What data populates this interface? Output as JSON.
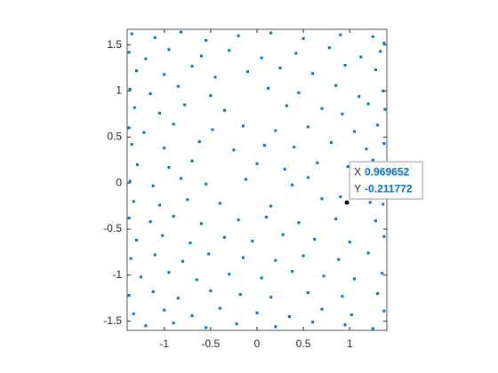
{
  "chart_data": {
    "type": "scatter",
    "color": "#0072bd",
    "xlim": [
      -1.4,
      1.4
    ],
    "ylim": [
      -1.6,
      1.67
    ],
    "xticks": [
      -1,
      -0.5,
      0,
      0.5,
      1
    ],
    "yticks": [
      -1.5,
      -1,
      -0.5,
      0,
      0.5,
      1,
      1.5
    ],
    "grid": false,
    "x": [
      -1.35,
      -1.1,
      -0.82,
      -0.55,
      -0.2,
      0.15,
      0.5,
      0.9,
      1.25,
      1.37,
      -1.38,
      -1.2,
      -0.95,
      -0.6,
      -0.3,
      0.05,
      0.42,
      0.78,
      1.12,
      1.33,
      -1.3,
      -1.0,
      -0.7,
      -0.45,
      -0.1,
      0.25,
      0.6,
      0.95,
      1.28,
      -1.37,
      -1.15,
      -0.85,
      -0.5,
      0.12,
      0.45,
      0.85,
      1.1,
      1.36,
      -1.32,
      -1.05,
      -0.78,
      -0.35,
      0.32,
      0.7,
      0.92,
      1.2,
      1.38,
      -1.38,
      -1.22,
      -0.9,
      -0.48,
      -0.15,
      0.2,
      0.55,
      1.05,
      1.3,
      -1.35,
      -1.0,
      -0.62,
      -0.25,
      0.08,
      0.4,
      0.8,
      1.18,
      1.37,
      -1.29,
      -0.95,
      -0.7,
      0.0,
      0.3,
      0.65,
      0.98,
      1.25,
      1.38,
      -1.37,
      -1.12,
      -0.82,
      -0.55,
      -0.12,
      0.38,
      0.55,
      0.9,
      1.32,
      -1.33,
      -1.05,
      -0.75,
      -0.4,
      0.15,
      0.7,
      1.22,
      1.36,
      -1.38,
      -1.15,
      -0.9,
      -0.6,
      -0.2,
      0.1,
      0.45,
      0.85,
      1.28,
      -1.3,
      -1.02,
      -0.72,
      -0.35,
      -0.05,
      0.28,
      0.62,
      1.0,
      1.37,
      -1.36,
      -1.1,
      -0.8,
      -0.52,
      -0.15,
      0.2,
      0.5,
      0.88,
      1.2,
      -1.25,
      -0.95,
      -0.65,
      -0.3,
      0.05,
      0.38,
      0.72,
      1.05,
      1.35,
      -1.38,
      -1.12,
      -0.85,
      -0.5,
      -0.18,
      0.15,
      0.55,
      0.92,
      1.3,
      -1.33,
      -1.0,
      -0.7,
      -0.4,
      0.0,
      0.35,
      0.7,
      1.02,
      1.37,
      -1.2,
      -0.9,
      -0.55,
      -0.22,
      0.2,
      0.6,
      0.95,
      1.25
    ],
    "values": [
      1.62,
      1.58,
      1.64,
      1.55,
      1.6,
      1.63,
      1.57,
      1.61,
      1.59,
      1.52,
      1.42,
      1.35,
      1.45,
      1.38,
      1.44,
      1.36,
      1.41,
      1.47,
      1.37,
      1.43,
      1.22,
      1.18,
      1.27,
      1.15,
      1.21,
      1.25,
      1.19,
      1.28,
      1.23,
      1.02,
      0.97,
      1.05,
      0.95,
      1.03,
      0.98,
      1.06,
      0.94,
      1.0,
      0.82,
      0.76,
      0.85,
      0.79,
      0.84,
      0.81,
      0.75,
      0.86,
      0.8,
      0.6,
      0.55,
      0.64,
      0.58,
      0.62,
      0.57,
      0.61,
      0.56,
      0.63,
      0.42,
      0.38,
      0.45,
      0.36,
      0.41,
      0.39,
      0.44,
      0.37,
      0.43,
      0.2,
      0.17,
      0.24,
      0.21,
      0.15,
      0.22,
      0.18,
      0.25,
      0.19,
      0.02,
      -0.03,
      0.05,
      -0.01,
      0.04,
      -0.02,
      0.06,
      -0.15,
      0.01,
      -0.2,
      -0.24,
      -0.18,
      -0.22,
      -0.25,
      -0.17,
      -0.21,
      -0.23,
      -0.38,
      -0.42,
      -0.36,
      -0.44,
      -0.4,
      -0.37,
      -0.43,
      -0.39,
      -0.41,
      -0.62,
      -0.57,
      -0.65,
      -0.59,
      -0.63,
      -0.56,
      -0.61,
      -0.64,
      -0.58,
      -0.82,
      -0.78,
      -0.85,
      -0.77,
      -0.81,
      -0.84,
      -0.79,
      -0.83,
      -0.76,
      -1.02,
      -0.97,
      -1.05,
      -0.99,
      -1.03,
      -0.96,
      -1.01,
      -1.04,
      -0.98,
      -1.22,
      -1.18,
      -1.25,
      -1.17,
      -1.21,
      -1.24,
      -1.19,
      -1.23,
      -1.2,
      -1.42,
      -1.38,
      -1.44,
      -1.36,
      -1.41,
      -1.45,
      -1.37,
      -1.43,
      -1.39,
      -1.55,
      -1.52,
      -1.57,
      -1.53,
      -1.56,
      -1.51,
      -1.54,
      -1.58
    ],
    "datatip": {
      "x_label": "X",
      "y_label": "Y",
      "x": 0.969652,
      "y": -0.211772
    }
  }
}
